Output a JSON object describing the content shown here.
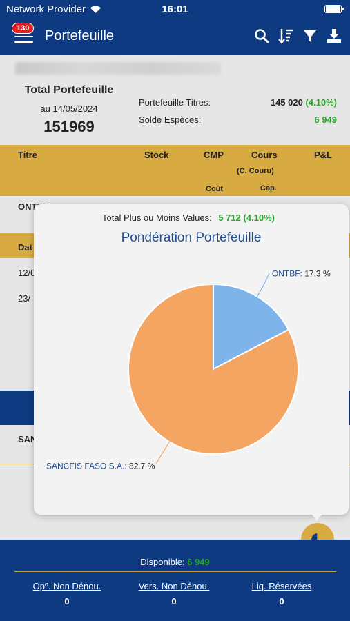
{
  "status_bar": {
    "carrier": "Network Provider",
    "time": "16:01"
  },
  "nav": {
    "badge": "130",
    "title": "Portefeuille"
  },
  "summary": {
    "total_label": "Total Portefeuille",
    "date": "au 14/05/2024",
    "total_value": "151969",
    "titres_label": "Portefeuille Titres:",
    "titres_value": "145 020",
    "titres_pct": "(4.10%)",
    "especes_label": "Solde Espèces:",
    "especes_value": "6 949"
  },
  "table": {
    "headers": {
      "titre": "Titre",
      "stock": "Stock",
      "cmp": "CMP",
      "cours": "Cours",
      "pl": "P&L",
      "cours_sub": "(C. Couru)",
      "cmp_sub": "Coût",
      "cours_sub2": "Cap."
    },
    "row_ontbf": "ONTBF",
    "sub_head": "Dat",
    "date1": "12/0",
    "date2": "23/",
    "san": "SAN"
  },
  "popup": {
    "pm_label": "Total Plus ou Moins Values:",
    "pm_value": "5 712 (4.10%)",
    "title": "Pondération Portefeuille"
  },
  "chart_data": {
    "type": "pie",
    "title": "Pondération Portefeuille",
    "slices": [
      {
        "label": "ONTBF",
        "value": 17.3,
        "display": "17.3 %",
        "color": "#7fb4ea"
      },
      {
        "label": "SANCFIS FASO S.A.",
        "value": 82.7,
        "display": "82.7 %",
        "color": "#f4a562"
      }
    ]
  },
  "footer": {
    "dispo_label": "Disponible:",
    "dispo_value": "6 949",
    "op_label": "Opº. Non Dénou.",
    "op_value": "0",
    "vers_label": "Vers. Non Dénou.",
    "vers_value": "0",
    "liq_label": "Liq. Réservées",
    "liq_value": "0"
  },
  "colors": {
    "primary": "#0e3a82",
    "accent": "#d8aa42",
    "positive": "#2aa52a"
  }
}
